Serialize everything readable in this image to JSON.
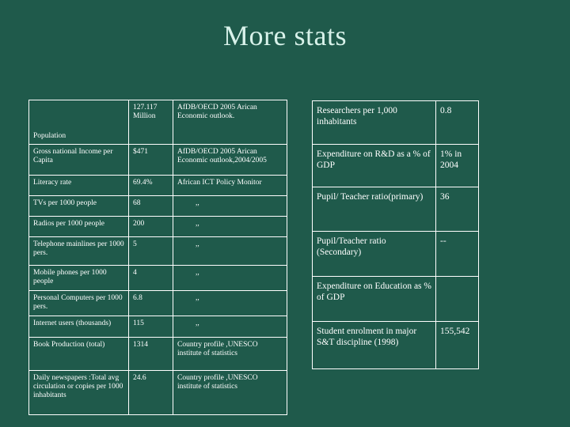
{
  "page": {
    "title": "More stats"
  },
  "left_table": {
    "rows": [
      {
        "indicator": "Population",
        "value": "127.117 Million",
        "source": "AfDB/OECD 2005 Arican Economic outlook."
      },
      {
        "indicator": "Gross national Income per Capita",
        "value": "$471",
        "source": "AfDB/OECD 2005 Arican Economic outlook,2004/2005"
      },
      {
        "indicator": "Literacy rate",
        "value": "69.4%",
        "source": "African ICT Policy Monitor"
      },
      {
        "indicator": "TVs per 1000 people",
        "value": "68",
        "source": ",,"
      },
      {
        "indicator": "Radios per 1000 people",
        "value": "200",
        "source": ",,"
      },
      {
        "indicator": "Telephone mainlines per 1000 pers.",
        "value": "5",
        "source": ",,"
      },
      {
        "indicator": "Mobile phones per 1000 people",
        "value": "4",
        "source": ",,"
      },
      {
        "indicator": "Personal Computers per 1000 pers.",
        "value": "6.8",
        "source": ",,"
      },
      {
        "indicator": "Internet users (thousands)",
        "value": "115",
        "source": ",,"
      },
      {
        "indicator": "Book Production (total)",
        "value": "1314",
        "source": "Country profile ,UNESCO institute of statistics"
      },
      {
        "indicator": "Daily newspapers :Total avg circulation or copies per 1000 inhabitants",
        "value": "24.6",
        "source": "Country profile ,UNESCO institute of statistics"
      }
    ]
  },
  "right_table": {
    "rows": [
      {
        "indicator": "Researchers per 1,000 inhabitants",
        "value": "0.8"
      },
      {
        "indicator": "Expenditure on R&D as a % of GDP",
        "value": "1% in 2004"
      },
      {
        "indicator": "Pupil/ Teacher ratio(primary)",
        "value": "36"
      },
      {
        "indicator": "Pupil/Teacher ratio (Secondary)",
        "value": "--"
      },
      {
        "indicator": "Expenditure on Education as % of GDP",
        "value": ""
      },
      {
        "indicator": "Student enrolment in major S&T discipline (1998)",
        "value": "155,542"
      }
    ]
  }
}
